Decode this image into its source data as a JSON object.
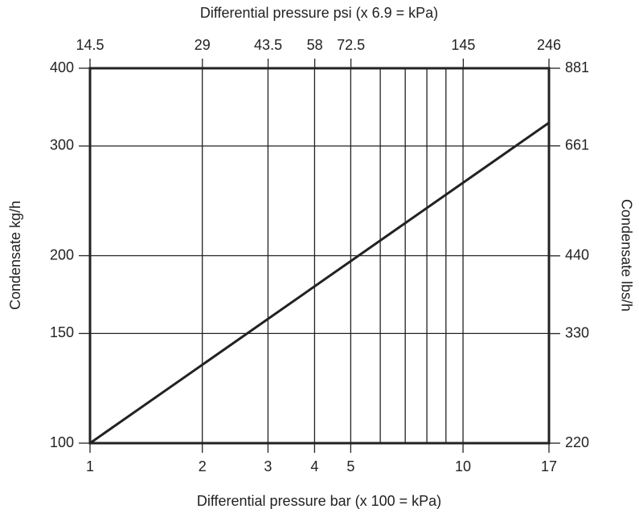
{
  "chart_data": {
    "type": "line",
    "x_label": "Differential pressure bar (x 100 = kPa)",
    "x2_label": "Differential pressure psi (x 6.9 = kPa)",
    "y_label": "Condensate kg/h",
    "y2_label": "Condensate lbs/h",
    "x": [
      1,
      17
    ],
    "values": [
      100,
      327
    ],
    "color": "#222222",
    "xscale": "log",
    "yscale": "log",
    "xlim": [
      1,
      17
    ],
    "xticks": [
      1,
      2,
      3,
      4,
      5,
      10,
      17
    ],
    "xgrid": [
      6,
      7,
      8,
      9
    ],
    "x2lim": [
      14.5,
      246
    ],
    "x2ticks": [
      14.5,
      29,
      43.5,
      58,
      72.5,
      145,
      246
    ],
    "ylim": [
      100,
      400
    ],
    "yticks": [
      100,
      150,
      200,
      300,
      400
    ],
    "y2lim": [
      220,
      881
    ],
    "y2ticks": [
      220,
      330,
      440,
      661,
      881
    ],
    "grid": true
  }
}
